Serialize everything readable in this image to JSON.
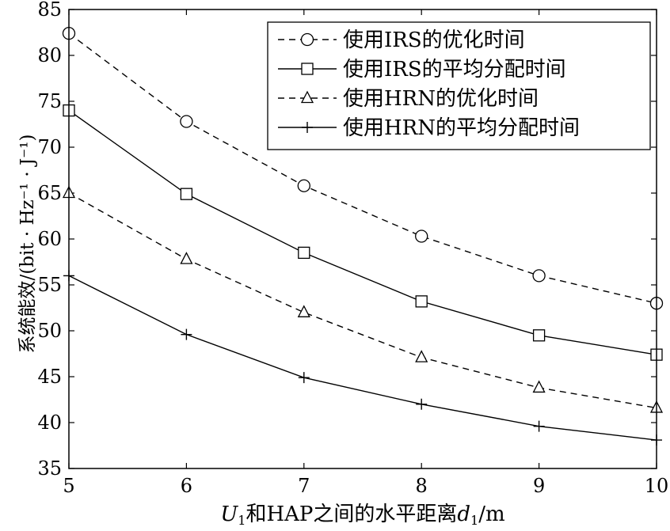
{
  "chart_data": {
    "type": "line",
    "title": "",
    "x": [
      5,
      6,
      7,
      8,
      9,
      10
    ],
    "xlim": [
      5,
      10
    ],
    "ylim": [
      35,
      85
    ],
    "xticks": [
      "5",
      "6",
      "7",
      "8",
      "9",
      "10"
    ],
    "yticks": [
      "35",
      "40",
      "45",
      "50",
      "55",
      "60",
      "65",
      "70",
      "75",
      "80",
      "85"
    ],
    "xlabel": {
      "u": "U",
      "u_sub": "1",
      "middle": "和HAP之间的水平距离",
      "d": "d",
      "d_sub": "1",
      "unit": "/m"
    },
    "ylabel": "系统能效/(bit · Hz⁻¹ · J⁻¹)",
    "grid": false,
    "legend_position": "top-right",
    "series": [
      {
        "name": "使用IRS的优化时间",
        "values": [
          82.4,
          72.8,
          65.8,
          60.3,
          56.0,
          53.0
        ],
        "marker": "circle",
        "line": "dashed"
      },
      {
        "name": "使用IRS的平均分配时间",
        "values": [
          74.0,
          64.9,
          58.5,
          53.2,
          49.5,
          47.4
        ],
        "marker": "square",
        "line": "solid"
      },
      {
        "name": "使用HRN的优化时间",
        "values": [
          65.0,
          57.8,
          52.0,
          47.1,
          43.8,
          41.6
        ],
        "marker": "triangle",
        "line": "dashed"
      },
      {
        "name": "使用HRN的平均分配时间",
        "values": [
          56.0,
          49.6,
          44.9,
          42.0,
          39.6,
          38.1
        ],
        "marker": "plus",
        "line": "solid"
      }
    ]
  }
}
